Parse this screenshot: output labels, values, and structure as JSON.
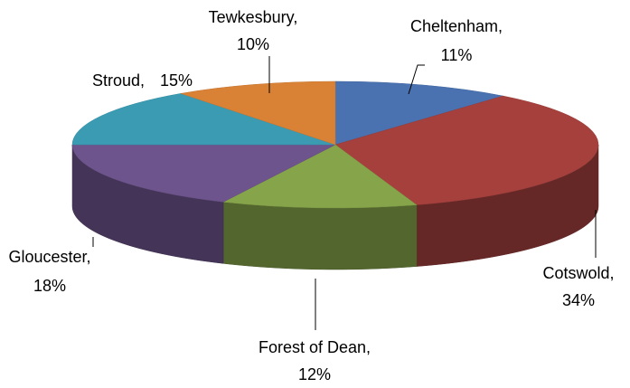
{
  "chart_data": {
    "type": "pie3d",
    "categories": [
      "Cheltenham,",
      "Cotswold,",
      "Forest of Dean,",
      "Gloucester,",
      "Stroud,",
      "Tewkesbury,"
    ],
    "values": [
      11,
      34,
      12,
      18,
      15,
      10
    ],
    "value_labels": [
      "11%",
      "34%",
      "12%",
      "18%",
      "15%",
      "10%"
    ],
    "colors": [
      "#4a72b0",
      "#a5403d",
      "#86a44a",
      "#6e548d",
      "#3a9bb3",
      "#d98236"
    ]
  }
}
